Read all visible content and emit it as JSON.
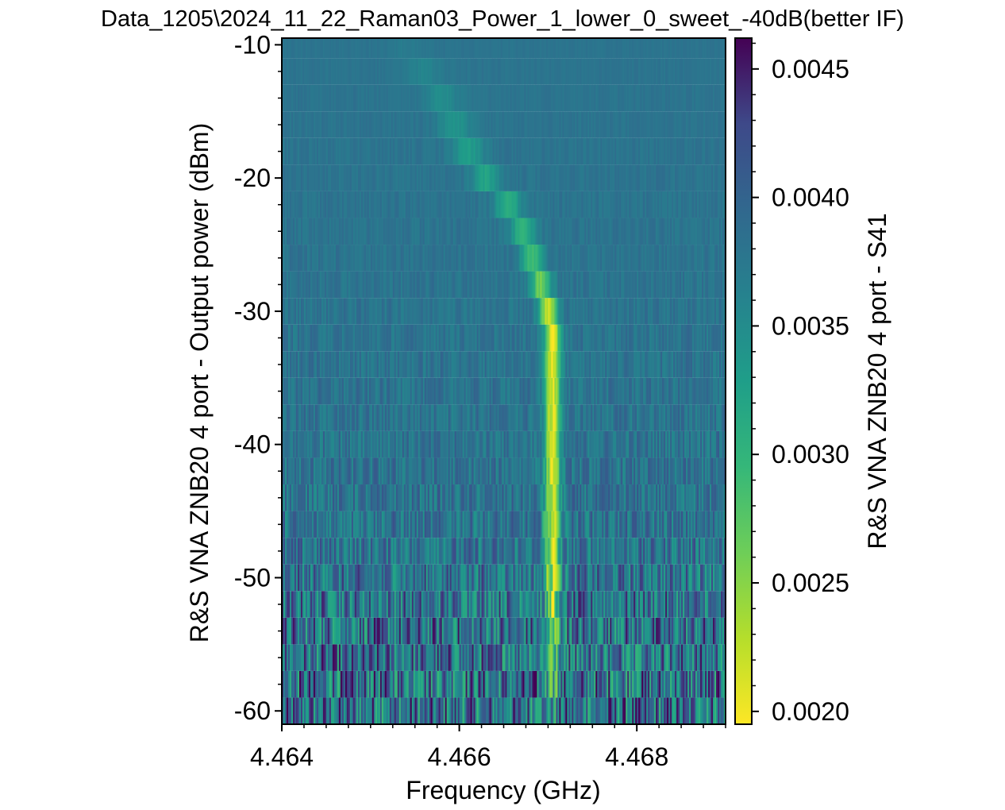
{
  "chart_data": {
    "type": "heatmap",
    "title": "Data_1205\\2024_11_22_Raman03_Power_1_lower_0_sweet_-40dB(better IF)",
    "xlabel": "Frequency (GHz)",
    "ylabel": "R&S VNA ZNB20 4 port - Output power (dBm)",
    "colorbar_label": "R&S VNA ZNB20 4 port - S41",
    "xlim": [
      4.464,
      4.469
    ],
    "ylim": [
      -61,
      -9.5
    ],
    "clim": [
      0.00195,
      0.00462
    ],
    "x_ticks": [
      4.464,
      4.466,
      4.468
    ],
    "x_tick_labels": [
      "4.464",
      "4.466",
      "4.468"
    ],
    "y_ticks": [
      -10,
      -20,
      -30,
      -40,
      -50,
      -60
    ],
    "y_tick_labels": [
      "-10",
      "-20",
      "-30",
      "-40",
      "-50",
      "-60"
    ],
    "colorbar_ticks": [
      0.0045,
      0.004,
      0.0035,
      0.003,
      0.0025,
      0.002
    ],
    "colorbar_tick_labels": [
      "0.0045",
      "0.0040",
      "0.0035",
      "0.0030",
      "0.0025",
      "0.0020"
    ],
    "colormap_reversed": "viridis_r",
    "power_levels_dBm": [
      -60,
      -58,
      -56,
      -54,
      -52,
      -50,
      -48,
      -46,
      -44,
      -42,
      -40,
      -38,
      -36,
      -34,
      -32,
      -30,
      -28,
      -26,
      -24,
      -22,
      -20,
      -18,
      -16,
      -14,
      -12,
      -10
    ],
    "resonance_center_GHz": [
      4.46705,
      4.46705,
      4.46705,
      4.46705,
      4.46705,
      4.46705,
      4.46705,
      4.46705,
      4.46705,
      4.46705,
      4.46705,
      4.46705,
      4.46705,
      4.46705,
      4.46705,
      4.467,
      4.46692,
      4.46682,
      4.46672,
      4.46655,
      4.4663,
      4.4661,
      4.46595,
      4.4658,
      4.4656,
      4.4654
    ],
    "resonance_min_S41": [
      0.0035,
      0.0032,
      0.0028,
      0.0026,
      0.0024,
      0.0023,
      0.0022,
      0.0022,
      0.0022,
      0.0021,
      0.0021,
      0.0021,
      0.0021,
      0.00205,
      0.00205,
      0.0022,
      0.0026,
      0.0029,
      0.003,
      0.0031,
      0.0032,
      0.0033,
      0.0034,
      0.0035,
      0.0036,
      0.0037
    ],
    "background_S41": 0.0038,
    "noise_S41_by_level": [
      0.0009,
      0.0009,
      0.0008,
      0.0008,
      0.0007,
      0.0006,
      0.0005,
      0.00042,
      0.00036,
      0.00032,
      0.00028,
      0.00025,
      0.00022,
      0.0002,
      0.00018,
      0.00016,
      0.00014,
      0.00012,
      0.00011,
      0.0001,
      9e-05,
      8e-05,
      7e-05,
      6e-05,
      5e-05,
      4e-05
    ]
  }
}
